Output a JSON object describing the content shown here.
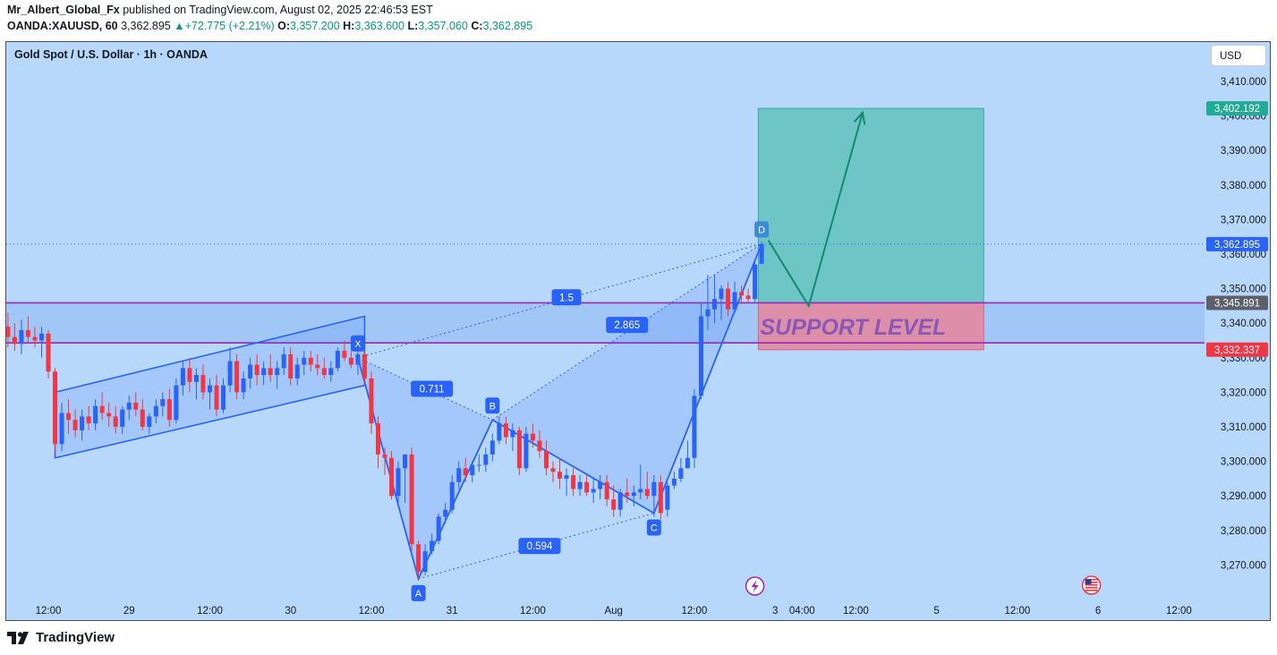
{
  "header": {
    "author": "Mr_Albert_Global_Fx",
    "published_text": " published on TradingView.com, August 02, 2025 22:46:53 EST",
    "symbol": "OANDA:XAUUSD, 60",
    "last": "3,362.895",
    "change": "+72.775 (+2.21%)",
    "o_label": "O:",
    "o": "3,357.200",
    "h_label": "H:",
    "h": "3,363.600",
    "l_label": "L:",
    "l": "3,357.060",
    "c_label": "C:",
    "c": "3,362.895"
  },
  "chart_title": "Gold Spot / U.S. Dollar · 1h · OANDA",
  "currency": "USD",
  "footer": {
    "brand": "TradingView"
  },
  "colors": {
    "background": "#b7d7fb",
    "up": "#2962ff",
    "down": "#f23645",
    "pattern": "#2962ff",
    "target_zone": "#5ac2b8",
    "support_zone": "#e8859c",
    "support_line": "#9c27b0",
    "arrow": "#138a6e",
    "support_text": "#7b4fb8"
  },
  "chart_data": {
    "type": "candlestick",
    "ylim": [
      3262,
      3414
    ],
    "y_ticks": [
      3270,
      3280,
      3290,
      3300,
      3310,
      3320,
      3330,
      3340,
      3350,
      3360,
      3370,
      3380,
      3390,
      3400,
      3410
    ],
    "y_tick_labels": [
      "3,270.000",
      "3,280.000",
      "3,290.000",
      "3,300.000",
      "3,310.000",
      "3,320.000",
      "3,330.000",
      "3,340.000",
      "3,350.000",
      "3,360.000",
      "3,370.000",
      "3,380.000",
      "3,390.000",
      "3,400.000",
      "3,410.000"
    ],
    "x_ticks": [
      {
        "label": "12:00",
        "t": 0
      },
      {
        "label": "29",
        "t": 12
      },
      {
        "label": "12:00",
        "t": 24
      },
      {
        "label": "30",
        "t": 36
      },
      {
        "label": "12:00",
        "t": 48
      },
      {
        "label": "31",
        "t": 60
      },
      {
        "label": "12:00",
        "t": 72
      },
      {
        "label": "Aug",
        "t": 84
      },
      {
        "label": "12:00",
        "t": 96
      },
      {
        "label": "3",
        "t": 108
      },
      {
        "label": "04:00",
        "t": 112
      },
      {
        "label": "12:00",
        "t": 120
      },
      {
        "label": "5",
        "t": 132
      },
      {
        "label": "12:00",
        "t": 144
      },
      {
        "label": "6",
        "t": 156
      },
      {
        "label": "12:00",
        "t": 168
      }
    ],
    "price_labels": [
      {
        "name": "target",
        "value": 3402.192,
        "text": "3,402.192",
        "color": "#22ab94"
      },
      {
        "name": "last",
        "value": 3362.895,
        "text": "3,362.895",
        "color": "#2962ff"
      },
      {
        "name": "support-top",
        "value": 3345.891,
        "text": "3,345.891",
        "color": "#5d606b"
      },
      {
        "name": "support-bottom",
        "value": 3332.337,
        "text": "3,332.337",
        "color": "#f23645"
      }
    ],
    "candles": [
      {
        "t": -6,
        "o": 3339,
        "h": 3343,
        "l": 3333,
        "c": 3336
      },
      {
        "t": -5,
        "o": 3336,
        "h": 3340,
        "l": 3332,
        "c": 3334
      },
      {
        "t": -4,
        "o": 3334,
        "h": 3341,
        "l": 3331,
        "c": 3338
      },
      {
        "t": -3,
        "o": 3338,
        "h": 3342,
        "l": 3334,
        "c": 3336
      },
      {
        "t": -2,
        "o": 3336,
        "h": 3339,
        "l": 3333,
        "c": 3335
      },
      {
        "t": -1,
        "o": 3335,
        "h": 3339,
        "l": 3330,
        "c": 3337
      },
      {
        "t": 0,
        "o": 3337,
        "h": 3338,
        "l": 3324,
        "c": 3326
      },
      {
        "t": 1,
        "o": 3326,
        "h": 3327,
        "l": 3302,
        "c": 3305
      },
      {
        "t": 2,
        "o": 3305,
        "h": 3317,
        "l": 3303,
        "c": 3314
      },
      {
        "t": 3,
        "o": 3314,
        "h": 3318,
        "l": 3308,
        "c": 3312
      },
      {
        "t": 4,
        "o": 3312,
        "h": 3315,
        "l": 3307,
        "c": 3309
      },
      {
        "t": 5,
        "o": 3309,
        "h": 3315,
        "l": 3306,
        "c": 3313
      },
      {
        "t": 6,
        "o": 3313,
        "h": 3316,
        "l": 3309,
        "c": 3311
      },
      {
        "t": 7,
        "o": 3311,
        "h": 3318,
        "l": 3309,
        "c": 3316
      },
      {
        "t": 8,
        "o": 3316,
        "h": 3320,
        "l": 3312,
        "c": 3314
      },
      {
        "t": 9,
        "o": 3314,
        "h": 3317,
        "l": 3310,
        "c": 3313
      },
      {
        "t": 10,
        "o": 3313,
        "h": 3316,
        "l": 3308,
        "c": 3310
      },
      {
        "t": 11,
        "o": 3310,
        "h": 3316,
        "l": 3308,
        "c": 3315
      },
      {
        "t": 12,
        "o": 3315,
        "h": 3319,
        "l": 3312,
        "c": 3317
      },
      {
        "t": 13,
        "o": 3317,
        "h": 3320,
        "l": 3313,
        "c": 3315
      },
      {
        "t": 14,
        "o": 3315,
        "h": 3318,
        "l": 3309,
        "c": 3310
      },
      {
        "t": 15,
        "o": 3310,
        "h": 3314,
        "l": 3308,
        "c": 3313
      },
      {
        "t": 16,
        "o": 3313,
        "h": 3318,
        "l": 3311,
        "c": 3316
      },
      {
        "t": 17,
        "o": 3316,
        "h": 3320,
        "l": 3313,
        "c": 3318
      },
      {
        "t": 18,
        "o": 3318,
        "h": 3321,
        "l": 3310,
        "c": 3312
      },
      {
        "t": 19,
        "o": 3312,
        "h": 3324,
        "l": 3311,
        "c": 3322
      },
      {
        "t": 20,
        "o": 3322,
        "h": 3329,
        "l": 3319,
        "c": 3327
      },
      {
        "t": 21,
        "o": 3327,
        "h": 3330,
        "l": 3320,
        "c": 3323
      },
      {
        "t": 22,
        "o": 3323,
        "h": 3327,
        "l": 3318,
        "c": 3325
      },
      {
        "t": 23,
        "o": 3325,
        "h": 3328,
        "l": 3318,
        "c": 3320
      },
      {
        "t": 24,
        "o": 3320,
        "h": 3324,
        "l": 3315,
        "c": 3322
      },
      {
        "t": 25,
        "o": 3322,
        "h": 3325,
        "l": 3313,
        "c": 3315
      },
      {
        "t": 26,
        "o": 3315,
        "h": 3324,
        "l": 3314,
        "c": 3322
      },
      {
        "t": 27,
        "o": 3322,
        "h": 3333,
        "l": 3320,
        "c": 3329
      },
      {
        "t": 28,
        "o": 3329,
        "h": 3331,
        "l": 3318,
        "c": 3320
      },
      {
        "t": 29,
        "o": 3320,
        "h": 3326,
        "l": 3318,
        "c": 3324
      },
      {
        "t": 30,
        "o": 3324,
        "h": 3330,
        "l": 3321,
        "c": 3328
      },
      {
        "t": 31,
        "o": 3328,
        "h": 3331,
        "l": 3322,
        "c": 3325
      },
      {
        "t": 32,
        "o": 3325,
        "h": 3329,
        "l": 3322,
        "c": 3327
      },
      {
        "t": 33,
        "o": 3327,
        "h": 3331,
        "l": 3323,
        "c": 3325
      },
      {
        "t": 34,
        "o": 3325,
        "h": 3329,
        "l": 3321,
        "c": 3327
      },
      {
        "t": 35,
        "o": 3327,
        "h": 3333,
        "l": 3325,
        "c": 3331
      },
      {
        "t": 36,
        "o": 3331,
        "h": 3333,
        "l": 3322,
        "c": 3324
      },
      {
        "t": 37,
        "o": 3324,
        "h": 3330,
        "l": 3322,
        "c": 3328
      },
      {
        "t": 38,
        "o": 3328,
        "h": 3332,
        "l": 3325,
        "c": 3330
      },
      {
        "t": 39,
        "o": 3330,
        "h": 3332,
        "l": 3326,
        "c": 3328
      },
      {
        "t": 40,
        "o": 3328,
        "h": 3331,
        "l": 3325,
        "c": 3327
      },
      {
        "t": 41,
        "o": 3327,
        "h": 3330,
        "l": 3324,
        "c": 3325
      },
      {
        "t": 42,
        "o": 3325,
        "h": 3329,
        "l": 3323,
        "c": 3327
      },
      {
        "t": 43,
        "o": 3327,
        "h": 3333,
        "l": 3326,
        "c": 3332
      },
      {
        "t": 44,
        "o": 3332,
        "h": 3335,
        "l": 3329,
        "c": 3330
      },
      {
        "t": 45,
        "o": 3330,
        "h": 3332,
        "l": 3327,
        "c": 3328
      },
      {
        "t": 46,
        "o": 3328,
        "h": 3332,
        "l": 3325,
        "c": 3331
      },
      {
        "t": 47,
        "o": 3331,
        "h": 3332,
        "l": 3322,
        "c": 3324
      },
      {
        "t": 48,
        "o": 3324,
        "h": 3326,
        "l": 3308,
        "c": 3311
      },
      {
        "t": 49,
        "o": 3311,
        "h": 3313,
        "l": 3298,
        "c": 3302
      },
      {
        "t": 50,
        "o": 3302,
        "h": 3304,
        "l": 3296,
        "c": 3301
      },
      {
        "t": 51,
        "o": 3301,
        "h": 3303,
        "l": 3289,
        "c": 3290
      },
      {
        "t": 52,
        "o": 3290,
        "h": 3300,
        "l": 3288,
        "c": 3298
      },
      {
        "t": 53,
        "o": 3298,
        "h": 3302,
        "l": 3288,
        "c": 3302
      },
      {
        "t": 54,
        "o": 3302,
        "h": 3304,
        "l": 3274,
        "c": 3276
      },
      {
        "t": 55,
        "o": 3276,
        "h": 3277,
        "l": 3266,
        "c": 3268
      },
      {
        "t": 56,
        "o": 3268,
        "h": 3276,
        "l": 3267,
        "c": 3274
      },
      {
        "t": 57,
        "o": 3274,
        "h": 3279,
        "l": 3273,
        "c": 3277
      },
      {
        "t": 58,
        "o": 3277,
        "h": 3285,
        "l": 3276,
        "c": 3284
      },
      {
        "t": 59,
        "o": 3284,
        "h": 3288,
        "l": 3282,
        "c": 3286
      },
      {
        "t": 60,
        "o": 3286,
        "h": 3296,
        "l": 3285,
        "c": 3294
      },
      {
        "t": 61,
        "o": 3294,
        "h": 3300,
        "l": 3292,
        "c": 3298
      },
      {
        "t": 62,
        "o": 3298,
        "h": 3301,
        "l": 3294,
        "c": 3296
      },
      {
        "t": 63,
        "o": 3296,
        "h": 3300,
        "l": 3294,
        "c": 3299
      },
      {
        "t": 64,
        "o": 3299,
        "h": 3302,
        "l": 3297,
        "c": 3299
      },
      {
        "t": 65,
        "o": 3299,
        "h": 3304,
        "l": 3297,
        "c": 3302
      },
      {
        "t": 66,
        "o": 3302,
        "h": 3308,
        "l": 3300,
        "c": 3306
      },
      {
        "t": 67,
        "o": 3306,
        "h": 3313,
        "l": 3305,
        "c": 3311
      },
      {
        "t": 68,
        "o": 3311,
        "h": 3313,
        "l": 3305,
        "c": 3307
      },
      {
        "t": 69,
        "o": 3307,
        "h": 3311,
        "l": 3303,
        "c": 3309
      },
      {
        "t": 70,
        "o": 3309,
        "h": 3310,
        "l": 3296,
        "c": 3298
      },
      {
        "t": 71,
        "o": 3298,
        "h": 3310,
        "l": 3297,
        "c": 3308
      },
      {
        "t": 72,
        "o": 3308,
        "h": 3311,
        "l": 3304,
        "c": 3306
      },
      {
        "t": 73,
        "o": 3306,
        "h": 3309,
        "l": 3301,
        "c": 3303
      },
      {
        "t": 74,
        "o": 3303,
        "h": 3306,
        "l": 3296,
        "c": 3298
      },
      {
        "t": 75,
        "o": 3298,
        "h": 3300,
        "l": 3294,
        "c": 3297
      },
      {
        "t": 76,
        "o": 3297,
        "h": 3301,
        "l": 3292,
        "c": 3295
      },
      {
        "t": 77,
        "o": 3295,
        "h": 3298,
        "l": 3290,
        "c": 3296
      },
      {
        "t": 78,
        "o": 3296,
        "h": 3298,
        "l": 3290,
        "c": 3292
      },
      {
        "t": 79,
        "o": 3292,
        "h": 3296,
        "l": 3290,
        "c": 3294
      },
      {
        "t": 80,
        "o": 3294,
        "h": 3296,
        "l": 3290,
        "c": 3291
      },
      {
        "t": 81,
        "o": 3291,
        "h": 3295,
        "l": 3288,
        "c": 3292
      },
      {
        "t": 82,
        "o": 3292,
        "h": 3296,
        "l": 3289,
        "c": 3294
      },
      {
        "t": 83,
        "o": 3294,
        "h": 3296,
        "l": 3287,
        "c": 3289
      },
      {
        "t": 84,
        "o": 3289,
        "h": 3293,
        "l": 3284,
        "c": 3286
      },
      {
        "t": 85,
        "o": 3286,
        "h": 3292,
        "l": 3284,
        "c": 3291
      },
      {
        "t": 86,
        "o": 3291,
        "h": 3295,
        "l": 3288,
        "c": 3290
      },
      {
        "t": 87,
        "o": 3290,
        "h": 3293,
        "l": 3287,
        "c": 3291
      },
      {
        "t": 88,
        "o": 3291,
        "h": 3299,
        "l": 3289,
        "c": 3292
      },
      {
        "t": 89,
        "o": 3292,
        "h": 3297,
        "l": 3289,
        "c": 3290
      },
      {
        "t": 90,
        "o": 3290,
        "h": 3296,
        "l": 3284,
        "c": 3294
      },
      {
        "t": 91,
        "o": 3294,
        "h": 3296,
        "l": 3283,
        "c": 3285
      },
      {
        "t": 92,
        "o": 3286,
        "h": 3294,
        "l": 3284,
        "c": 3293
      },
      {
        "t": 93,
        "o": 3293,
        "h": 3297,
        "l": 3292,
        "c": 3295
      },
      {
        "t": 94,
        "o": 3295,
        "h": 3301,
        "l": 3294,
        "c": 3298
      },
      {
        "t": 95,
        "o": 3298,
        "h": 3306,
        "l": 3298,
        "c": 3301
      },
      {
        "t": 96,
        "o": 3301,
        "h": 3321,
        "l": 3298,
        "c": 3319
      },
      {
        "t": 97,
        "o": 3319,
        "h": 3346,
        "l": 3318,
        "c": 3342
      },
      {
        "t": 98,
        "o": 3342,
        "h": 3354,
        "l": 3338,
        "c": 3344
      },
      {
        "t": 99,
        "o": 3344,
        "h": 3354,
        "l": 3340,
        "c": 3347
      },
      {
        "t": 100,
        "o": 3347,
        "h": 3351,
        "l": 3341,
        "c": 3350
      },
      {
        "t": 101,
        "o": 3350,
        "h": 3352,
        "l": 3342,
        "c": 3344
      },
      {
        "t": 102,
        "o": 3344,
        "h": 3352,
        "l": 3343,
        "c": 3349
      },
      {
        "t": 103,
        "o": 3349,
        "h": 3351,
        "l": 3346,
        "c": 3348
      },
      {
        "t": 104,
        "o": 3348,
        "h": 3350,
        "l": 3346,
        "c": 3347
      },
      {
        "t": 105,
        "o": 3347,
        "h": 3358,
        "l": 3346,
        "c": 3357
      },
      {
        "t": 106,
        "o": 3357.2,
        "h": 3363.6,
        "l": 3357.06,
        "c": 3362.895
      }
    ],
    "channel": [
      {
        "t": 1,
        "p": 3320
      },
      {
        "t": 47,
        "p": 3342
      },
      {
        "t": 47,
        "p": 3322
      },
      {
        "t": 1,
        "p": 3301
      }
    ],
    "support_zone": {
      "t0": -7,
      "t1": 180,
      "top": 3345.891,
      "bottom": 3334.3
    },
    "position": {
      "t0": 105.5,
      "t1": 139,
      "target": 3402.192,
      "entry": 3345.891,
      "stop": 3332.337
    },
    "pattern_points": [
      {
        "name": "X",
        "t": 46,
        "p": 3330
      },
      {
        "name": "A",
        "t": 55,
        "p": 3266
      },
      {
        "name": "B",
        "t": 66,
        "p": 3312
      },
      {
        "name": "C",
        "t": 90,
        "p": 3285
      },
      {
        "name": "D",
        "t": 106,
        "p": 3363
      }
    ],
    "ratios": [
      {
        "text": "1.5",
        "t": 77,
        "p": 3347.5
      },
      {
        "text": "0.711",
        "t": 57,
        "p": 3321
      },
      {
        "text": "2.865",
        "t": 86,
        "p": 3339.5
      },
      {
        "text": "0.594",
        "t": 73,
        "p": 3275.5
      }
    ],
    "arrow": [
      {
        "t": 107,
        "p": 3364
      },
      {
        "t": 113,
        "p": 3345
      },
      {
        "t": 121,
        "p": 3401
      }
    ],
    "support_text": "SUPPORT LEVEL"
  }
}
